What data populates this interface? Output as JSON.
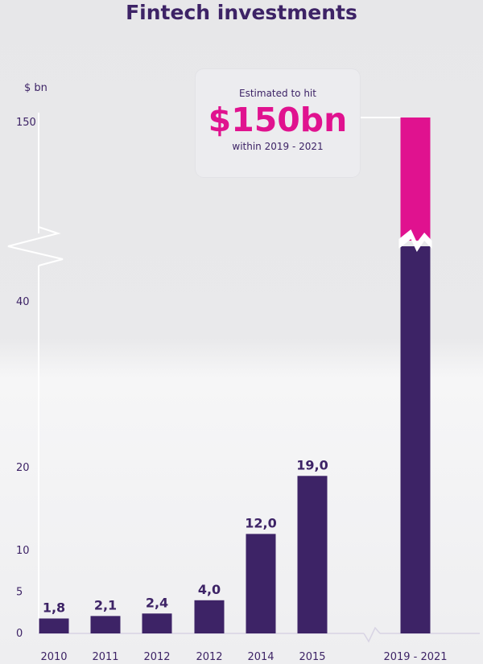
{
  "chart_data": {
    "type": "bar",
    "title": "Fintech investments",
    "ylabel": "$ bn",
    "categories": [
      "2010",
      "2011",
      "2012",
      "2012",
      "2014",
      "2015",
      "2019 - 2021"
    ],
    "values": [
      1.8,
      2.1,
      2.4,
      4.0,
      12.0,
      19.0,
      150
    ],
    "data_labels": [
      "1,8",
      "2,1",
      "2,4",
      "4,0",
      "12,0",
      "19,0",
      ""
    ],
    "yticks": [
      "0",
      "5",
      "10",
      "20",
      "40",
      "150"
    ],
    "axis_break": true,
    "legend": "none",
    "grid": false,
    "colors": {
      "bar": "#3d2366",
      "highlight": "#e0128f",
      "text": "#3d2366"
    },
    "callout": {
      "pre": "Estimated to hit",
      "value": "$150bn",
      "post": "within 2019 - 2021"
    }
  }
}
